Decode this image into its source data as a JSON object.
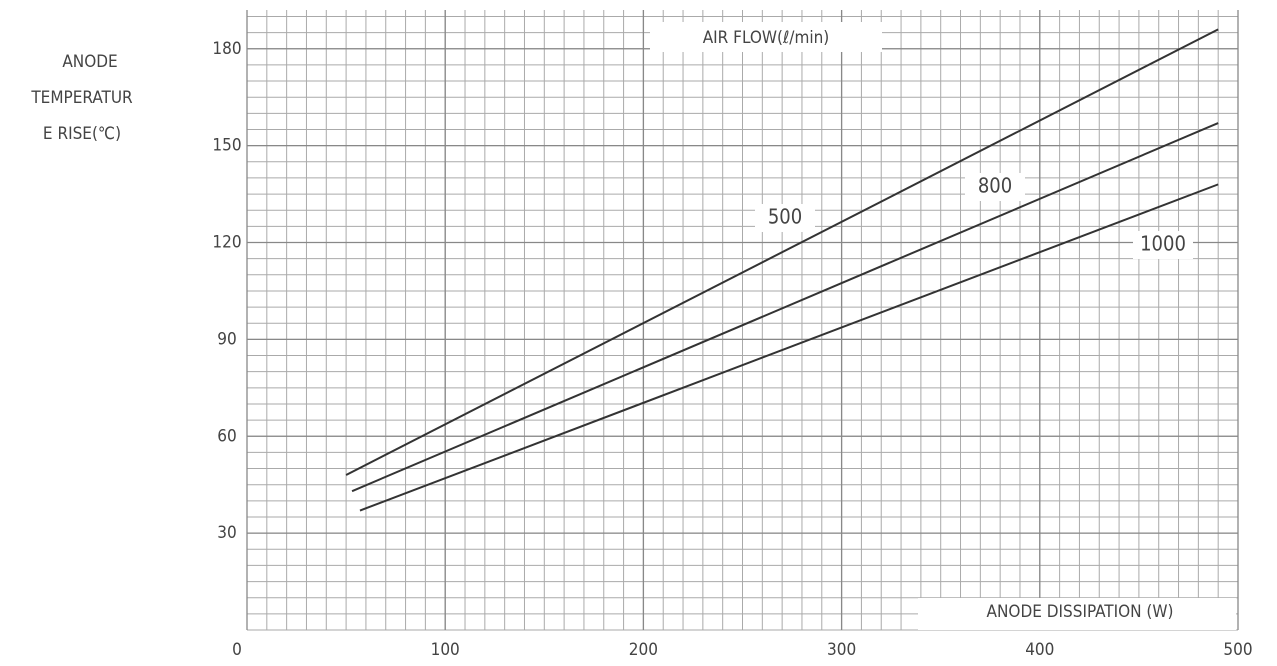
{
  "chart_data": {
    "type": "line",
    "ylabel": [
      "ANODE",
      "TEMPERATUR",
      "E RISE(℃)"
    ],
    "xlabel": "ANODE DISSIPATION (W)",
    "annotation": "AIR FLOW(ℓ/min)",
    "xlim": [
      0,
      500
    ],
    "ylim": [
      0,
      192
    ],
    "xticks": [
      0,
      100,
      200,
      300,
      400,
      500
    ],
    "yticks": [
      30,
      60,
      90,
      120,
      150,
      180
    ],
    "x_minor_step": 10,
    "y_minor_step": 5,
    "grid": true,
    "series": [
      {
        "name": "500",
        "color": "#333333",
        "x": [
          50,
          490
        ],
        "values": [
          48,
          186
        ]
      },
      {
        "name": "800",
        "color": "#333333",
        "x": [
          53,
          490
        ],
        "values": [
          43,
          157
        ]
      },
      {
        "name": "1000",
        "color": "#333333",
        "x": [
          57,
          490
        ],
        "values": [
          37,
          138
        ]
      }
    ]
  }
}
